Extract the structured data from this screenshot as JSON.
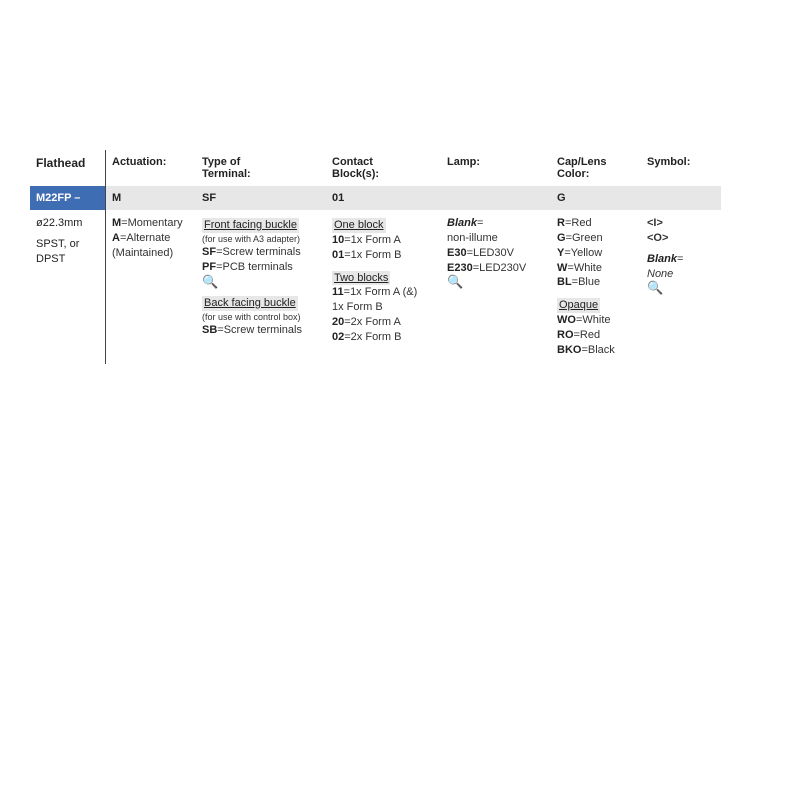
{
  "headers": {
    "flathead": "Flathead",
    "actuation": "Actuation:",
    "terminal": "Type of\nTerminal:",
    "contact": "Contact\nBlock(s):",
    "lamp": "Lamp:",
    "cap": "Cap/Lens\nColor:",
    "symbol": "Symbol:"
  },
  "selection": {
    "flathead": "M22FP –",
    "actuation": "M",
    "terminal": "SF",
    "contact": "01",
    "lamp": "",
    "cap": "G",
    "symbol": ""
  },
  "flathead_body": {
    "dim": "ø22.3mm",
    "line2": "SPST, or",
    "line3": "DPST"
  },
  "actuation": {
    "m_code": "M",
    "m_label": "=Momentary",
    "a_code": "A",
    "a_label": "=Alternate",
    "a_note": "(Maintained)"
  },
  "terminal": {
    "front_title": "Front facing buckle",
    "front_note": "(for use with A3 adapter)",
    "sf_code": "SF",
    "sf_label": "=Screw terminals",
    "pf_code": "PF",
    "pf_label": "=PCB terminals",
    "back_title": "Back facing buckle",
    "back_note": "(for use with control box)",
    "sb_code": "SB",
    "sb_label": "=Screw terminals"
  },
  "contact": {
    "one_title": "One block",
    "c10_code": "10",
    "c10_label": "=1x Form A",
    "c01_code": "01",
    "c01_label": "=1x Form B",
    "two_title": "Two blocks",
    "c11_code": "11",
    "c11_label": "=1x Form A (&)",
    "c11_line2": "1x Form B",
    "c20_code": "20",
    "c20_label": "=2x Form A",
    "c02_code": "02",
    "c02_label": "=2x Form B"
  },
  "lamp": {
    "blank_code": "Blank",
    "blank_label": "=",
    "blank_line2": "non-illume",
    "e30_code": "E30",
    "e30_label": "=LED30V",
    "e230_code": "E230",
    "e230_label": "=LED230V"
  },
  "cap": {
    "r_code": "R",
    "r_label": "=Red",
    "g_code": "G",
    "g_label": "=Green",
    "y_code": "Y",
    "y_label": "=Yellow",
    "w_code": "W",
    "w_label": "=White",
    "bl_code": "BL",
    "bl_label": "=Blue",
    "opaque_title": "Opaque",
    "wo_code": "WO",
    "wo_label": "=White",
    "ro_code": "RO",
    "ro_label": "=Red",
    "bko_code": "BKO",
    "bko_label": "=Black"
  },
  "symbol": {
    "i": "<I>",
    "o": "<O>",
    "blank_code": "Blank",
    "blank_label": "=",
    "none": "None"
  },
  "icons": {
    "magnifier": "🔍"
  },
  "colors": {
    "blue_bg": "#3f6db3",
    "grey_bg": "#e7e7e7",
    "text": "#333333",
    "accent_red": "#d33"
  }
}
